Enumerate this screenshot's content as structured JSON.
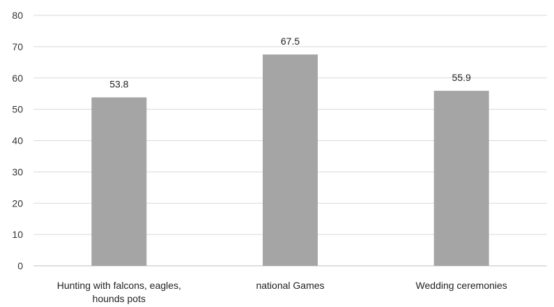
{
  "chart_data": {
    "type": "bar",
    "categories": [
      [
        "Hunting with falcons, eagles,",
        "hounds pots"
      ],
      [
        "national Games"
      ],
      [
        "Wedding ceremonies"
      ]
    ],
    "values": [
      53.8,
      67.5,
      55.9
    ],
    "value_labels": [
      "53.8",
      "67.5",
      "55.9"
    ],
    "ylim": [
      0,
      80
    ],
    "yticks": [
      0,
      10,
      20,
      30,
      40,
      50,
      60,
      70,
      80
    ],
    "grid": true,
    "legend": "none",
    "bar_color": "#a5a5a5",
    "grid_color": "#d9d9d9"
  }
}
